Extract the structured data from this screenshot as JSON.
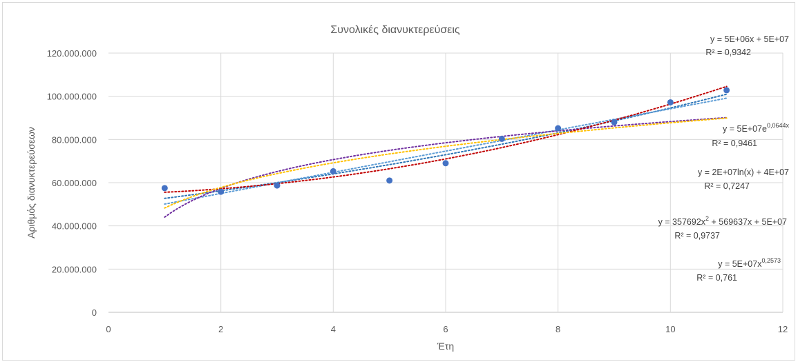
{
  "chart_data": {
    "type": "scatter",
    "title": "Συνολικές διανυκτερεύσεις",
    "xlabel": "Έτη",
    "ylabel": "Αριθμός διανυκτερεύσεων",
    "xlim": [
      0,
      12
    ],
    "ylim": [
      0,
      120000000
    ],
    "x_ticks": [
      0,
      2,
      4,
      6,
      8,
      10,
      12
    ],
    "y_ticks": [
      0,
      20000000,
      40000000,
      60000000,
      80000000,
      100000000,
      120000000
    ],
    "y_tick_labels": [
      "0",
      "20.000.000",
      "40.000.000",
      "60.000.000",
      "80.000.000",
      "100.000.000",
      "120.000.000"
    ],
    "grid": true,
    "points": {
      "color": "#4472c4",
      "x": [
        1,
        2,
        3,
        4,
        5,
        6,
        7,
        8,
        9,
        10,
        11
      ],
      "y": [
        57500000,
        55800000,
        58700000,
        65300000,
        61000000,
        69000000,
        80300000,
        85200000,
        88000000,
        97200000,
        102800000
      ]
    },
    "trendlines": [
      {
        "type": "exponential",
        "color": "#2e75b6",
        "equation": "y = 5E+07e",
        "equation_sup": "0,0644x",
        "r2": "R² = 0,9461"
      },
      {
        "type": "linear",
        "color": "#5b9bd5",
        "equation": "y = 5E+06x + 5E+07",
        "equation_sup": "",
        "r2": "R² = 0,9342"
      },
      {
        "type": "logarithmic",
        "color": "#7030a0",
        "equation": "y = 2E+07ln(x) + 4E+07",
        "equation_sup": "",
        "r2": "R² = 0,7247"
      },
      {
        "type": "polynomial",
        "color": "#c00000",
        "equation": "y = 357692x",
        "equation_sup": "2",
        "equation_rest": " + 569637x + 5E+07",
        "r2": "R² = 0,9737"
      },
      {
        "type": "power",
        "color": "#ffc000",
        "equation": "y = 5E+07x",
        "equation_sup": "0,2573",
        "r2": "R² = 0,761"
      }
    ]
  }
}
